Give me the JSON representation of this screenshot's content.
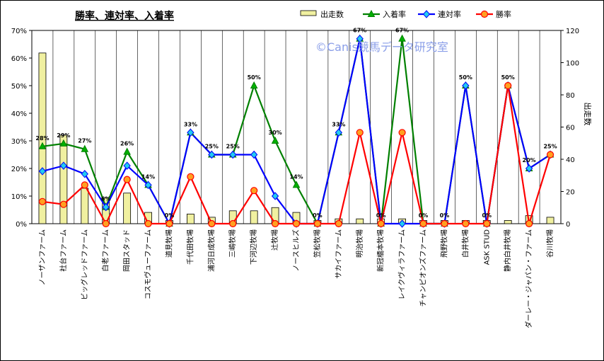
{
  "chart_data": {
    "type": "bar+line",
    "title": "勝率、連対率、入着率",
    "watermark": "©Canis競馬データ研究室",
    "y_left": {
      "ticks": [
        "0%",
        "10%",
        "20%",
        "30%",
        "40%",
        "50%",
        "60%",
        "70%"
      ],
      "ylim": [
        0,
        70
      ]
    },
    "y_right": {
      "label": "出走数",
      "ticks": [
        "0",
        "20",
        "40",
        "60",
        "80",
        "100",
        "120"
      ],
      "ylim": [
        0,
        120
      ]
    },
    "categories": [
      "ノーザンファーム",
      "社台ファーム",
      "ビッグレッドファーム",
      "白老ファーム",
      "岡田スタッド",
      "コスモヴューファーム",
      "道見牧場",
      "千代田牧場",
      "浦河日成牧場",
      "三嶋牧場",
      "下河辺牧場",
      "辻牧場",
      "ノースヒルズ",
      "笠松牧場",
      "サカイファーム",
      "明治牧場",
      "新冠橋本牧場",
      "レイクヴィラファーム",
      "チャンピオンズファーム",
      "飛野牧場",
      "白井牧場",
      "ASK STUD",
      "静内白井牧場",
      "ダーレー・ジャパン・ファーム",
      "谷川牧場"
    ],
    "series": [
      {
        "name": "出走数",
        "type": "bar",
        "axis": "right",
        "color": "#f0f0a0",
        "values": [
          106,
          55,
          22,
          16,
          19,
          7,
          2,
          6,
          4,
          8,
          8,
          10,
          7,
          2,
          3,
          3,
          3,
          3,
          2,
          2,
          2,
          2,
          2,
          5,
          4
        ]
      },
      {
        "name": "入着率",
        "type": "line",
        "axis": "left",
        "color": "#008000",
        "marker": "triangle",
        "values": [
          28,
          29,
          27,
          6,
          26,
          14,
          0,
          33,
          25,
          25,
          50,
          30,
          14,
          0,
          33,
          67,
          0,
          67,
          0,
          0,
          50,
          0,
          50,
          20,
          25
        ]
      },
      {
        "name": "連対率",
        "type": "line",
        "axis": "left",
        "color": "#0000ff",
        "marker": "diamond",
        "values": [
          19,
          21,
          18,
          6,
          21,
          14,
          0,
          33,
          25,
          25,
          25,
          10,
          0,
          0,
          33,
          67,
          0,
          0,
          0,
          0,
          50,
          0,
          50,
          20,
          25
        ]
      },
      {
        "name": "勝率",
        "type": "line",
        "axis": "left",
        "color": "#ff0000",
        "marker": "circle",
        "values": [
          8,
          7,
          14,
          0,
          16,
          0,
          0,
          17,
          0,
          0,
          12,
          0,
          0,
          0,
          0,
          33,
          0,
          33,
          0,
          0,
          0,
          0,
          50,
          0,
          25
        ]
      }
    ],
    "data_labels": [
      "28%",
      "29%",
      "27%",
      "6%",
      "26%",
      "14%",
      "0%",
      "33%",
      "25%",
      "25%",
      "50%",
      "30%",
      "14%",
      "0%",
      "33%",
      "67%",
      "0%",
      "67%",
      "0%",
      "0%",
      "50%",
      "0%",
      "50%",
      "20%",
      "25%"
    ],
    "legend_position": "top",
    "grid": "vertical"
  }
}
